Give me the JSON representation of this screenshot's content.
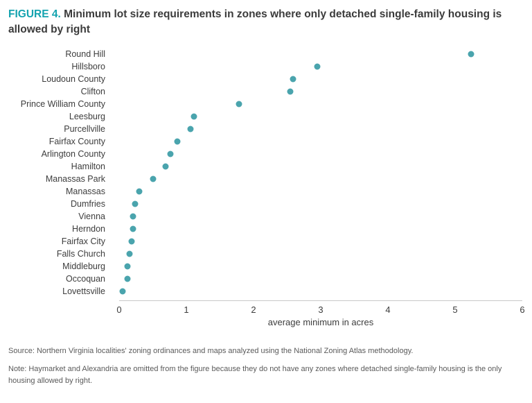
{
  "figure": {
    "label": "FIGURE 4.",
    "title": "Minimum lot size requirements in zones where only detached single-family housing is allowed by right"
  },
  "chart_data": {
    "type": "scatter",
    "subtype": "horizontal-dot-plot",
    "categories": [
      "Round Hill",
      "Hillsboro",
      "Loudoun County",
      "Clifton",
      "Prince William County",
      "Leesburg",
      "Purcellville",
      "Fairfax County",
      "Arlington County",
      "Hamilton",
      "Manassas Park",
      "Manassas",
      "Dumfries",
      "Vienna",
      "Herndon",
      "Fairfax City",
      "Falls Church",
      "Middleburg",
      "Occoquan",
      "Lovettsville"
    ],
    "values": [
      5.25,
      3.0,
      2.65,
      2.6,
      1.85,
      1.2,
      1.15,
      0.95,
      0.85,
      0.78,
      0.6,
      0.4,
      0.33,
      0.3,
      0.3,
      0.28,
      0.25,
      0.22,
      0.22,
      0.15
    ],
    "xlabel": "average minimum in acres",
    "xlim": [
      0,
      6
    ],
    "xticks": [
      0,
      1,
      2,
      3,
      4,
      5,
      6
    ],
    "grid": "off",
    "legend": "none",
    "dot_color": "#4aa4ad"
  },
  "colors": {
    "accent_teal": "#14a3af",
    "dot": "#4aa4ad",
    "title_text": "#3b3b3b",
    "footnote_text": "#5a5a5a",
    "axis_line": "#c9c9c9"
  },
  "source": "Source: Northern Virginia localities' zoning ordinances and maps analyzed using the National Zoning Atlas methodology.",
  "note": "Note: Haymarket and Alexandria are omitted from the figure because they do not have any zones where detached single-family housing is the only housing allowed by right."
}
